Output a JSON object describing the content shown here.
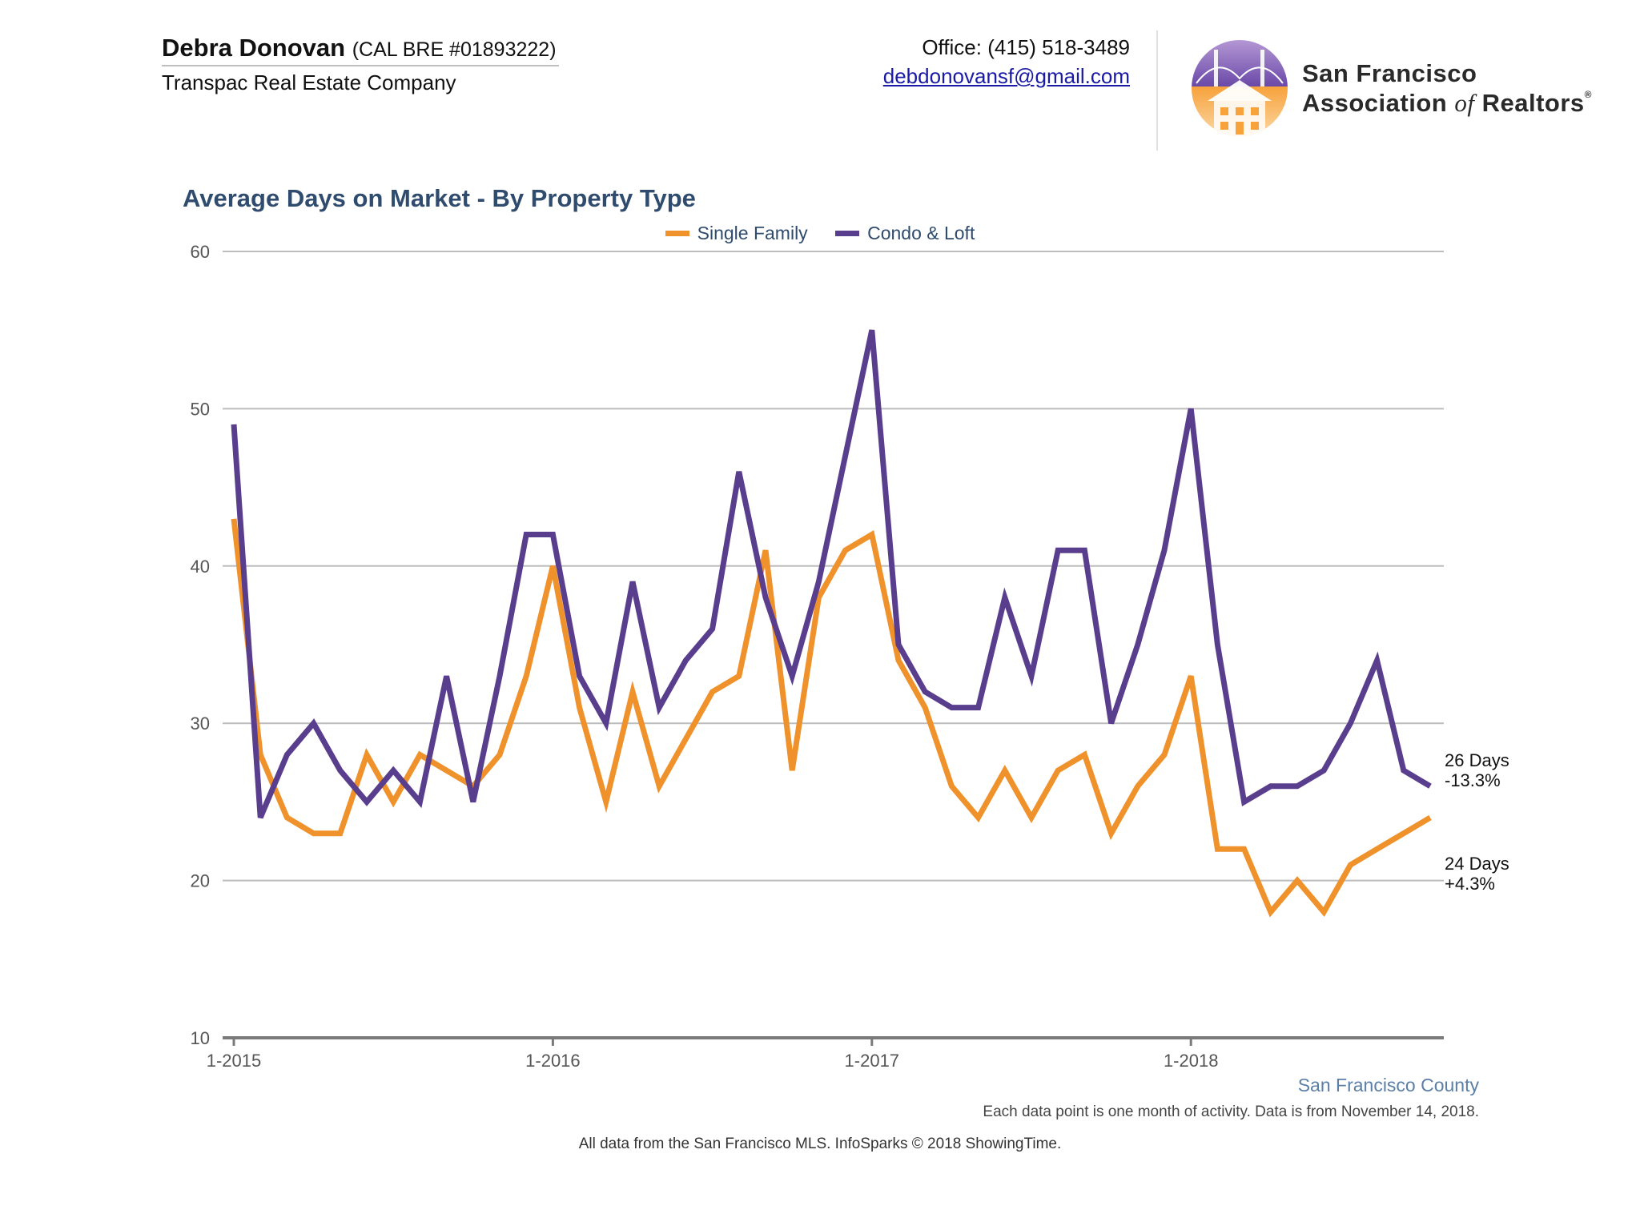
{
  "header": {
    "agent_name": "Debra Donovan",
    "agent_license": "(CAL BRE #01893222)",
    "company": "Transpac Real Estate Company",
    "office": "Office: (415) 518-3489",
    "email": "debdonovansf@gmail.com"
  },
  "logo": {
    "line1": "San Francisco",
    "line2_a": "Association",
    "line2_of": "of",
    "line2_b": "Realtors",
    "registered": "®"
  },
  "colors": {
    "single_family": "#f0922b",
    "condo_loft": "#5a3e8e",
    "title": "#2f4b6e",
    "grid": "#bdbdbd"
  },
  "chart_data": {
    "type": "line",
    "title": "Average Days on Market - By Property Type",
    "xlabel": "",
    "ylabel": "",
    "ylim": [
      10,
      60
    ],
    "yticks": [
      10,
      20,
      30,
      40,
      50,
      60
    ],
    "x_start": "1-2015",
    "x_tick_labels": [
      "1-2015",
      "1-2016",
      "1-2017",
      "1-2018"
    ],
    "x_tick_months": [
      "2015-01",
      "2016-01",
      "2017-01",
      "2018-01"
    ],
    "months": [
      "2015-01",
      "2015-02",
      "2015-03",
      "2015-04",
      "2015-05",
      "2015-06",
      "2015-07",
      "2015-08",
      "2015-09",
      "2015-10",
      "2015-11",
      "2015-12",
      "2016-01",
      "2016-02",
      "2016-03",
      "2016-04",
      "2016-05",
      "2016-06",
      "2016-07",
      "2016-08",
      "2016-09",
      "2016-10",
      "2016-11",
      "2016-12",
      "2017-01",
      "2017-02",
      "2017-03",
      "2017-04",
      "2017-05",
      "2017-06",
      "2017-07",
      "2017-08",
      "2017-09",
      "2017-10",
      "2017-11",
      "2017-12",
      "2018-01",
      "2018-02",
      "2018-03",
      "2018-04",
      "2018-05",
      "2018-06",
      "2018-07",
      "2018-08",
      "2018-09",
      "2018-10"
    ],
    "grid": true,
    "legend_position": "top-center",
    "series": [
      {
        "name": "Single Family",
        "values": [
          43,
          28,
          24,
          23,
          23,
          28,
          25,
          28,
          27,
          26,
          28,
          33,
          40,
          31,
          25,
          32,
          26,
          29,
          32,
          33,
          41,
          27,
          38,
          41,
          42,
          34,
          31,
          26,
          24,
          27,
          24,
          27,
          28,
          23,
          26,
          28,
          33,
          22,
          22,
          18,
          20,
          18,
          21,
          22,
          23,
          24
        ],
        "end_label": "24 Days",
        "end_change": "+4.3%"
      },
      {
        "name": "Condo & Loft",
        "values": [
          49,
          24,
          28,
          30,
          27,
          25,
          27,
          25,
          33,
          25,
          33,
          42,
          42,
          33,
          30,
          39,
          31,
          34,
          36,
          46,
          38,
          33,
          39,
          47,
          55,
          35,
          32,
          31,
          31,
          38,
          33,
          41,
          41,
          30,
          35,
          41,
          50,
          35,
          25,
          26,
          26,
          27,
          30,
          34,
          27,
          26
        ],
        "end_label": "26 Days",
        "end_change": "-13.3%"
      }
    ]
  },
  "footer": {
    "county": "San Francisco County",
    "note": "Each data point is one month of activity. Data is from November 14, 2018.",
    "source": "All data from the San Francisco MLS. InfoSparks © 2018 ShowingTime."
  }
}
